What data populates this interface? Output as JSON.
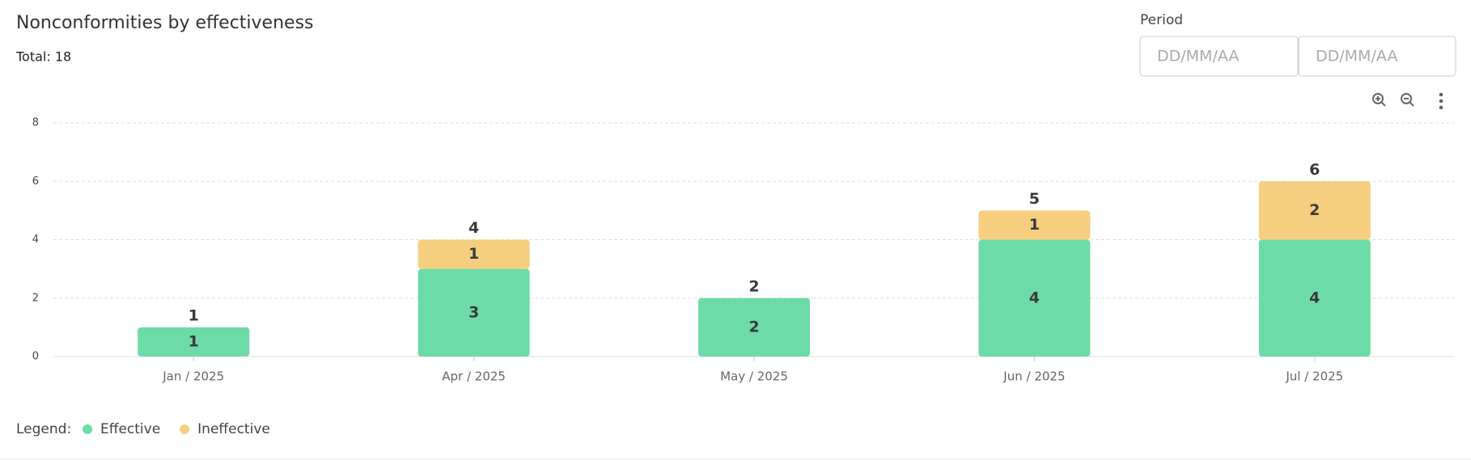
{
  "title": "Nonconformities by effectiveness",
  "total": "Total: 18",
  "period": {
    "label": "Period",
    "from": "DD/MM/AA",
    "to": "DD/MM/AA"
  },
  "chart_data": {
    "type": "stacked-bar",
    "categories": [
      "Jan / 2025",
      "Apr / 2025",
      "May / 2025",
      "Jun / 2025",
      "Jul / 2025"
    ],
    "series": [
      {
        "name": "Effective",
        "color": "#6ddba7",
        "values": [
          1,
          3,
          2,
          4,
          4
        ]
      },
      {
        "name": "Ineffective",
        "color": "#f5cf7f",
        "values": [
          0,
          1,
          0,
          1,
          2
        ]
      }
    ],
    "totals": [
      1,
      4,
      2,
      5,
      6
    ],
    "ylim": [
      0,
      8
    ],
    "yticks": [
      0,
      2,
      4,
      6,
      8
    ],
    "grid": true,
    "legend_label": "Legend:"
  }
}
